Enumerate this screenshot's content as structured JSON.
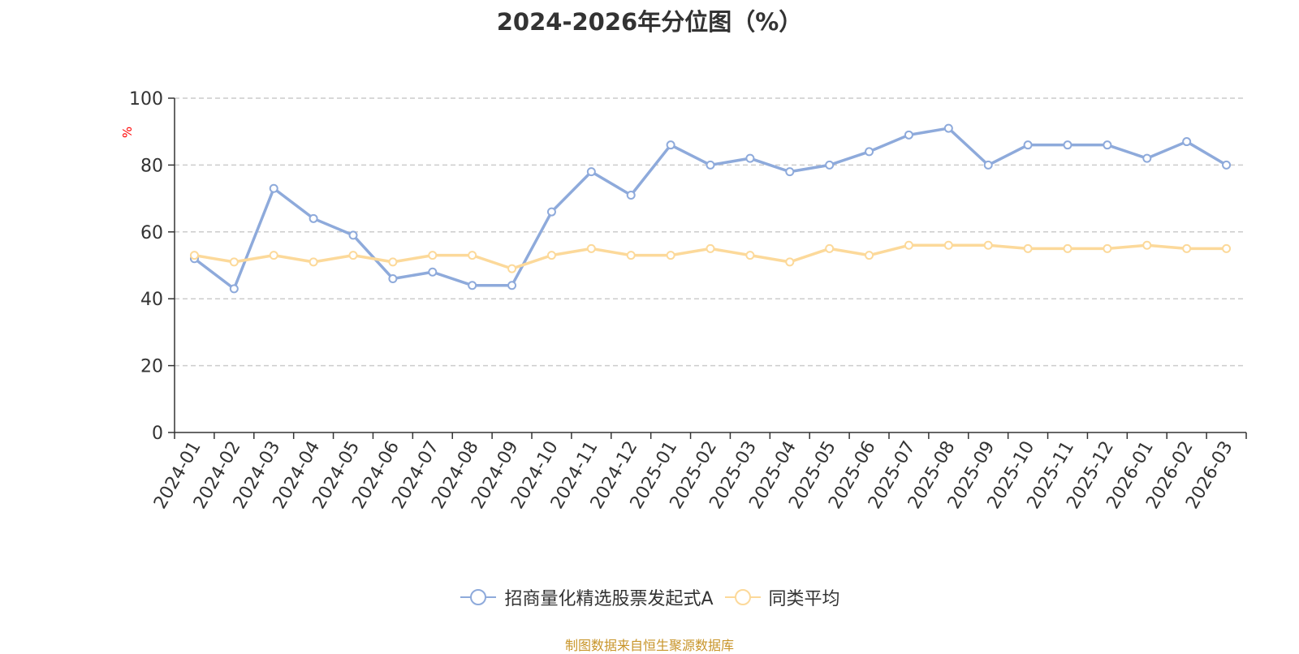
{
  "chart_data": {
    "type": "line",
    "title": "2024-2026年分位图（%）",
    "ylabel": "%",
    "ylim": [
      0,
      100
    ],
    "yticks": [
      0,
      20,
      40,
      60,
      80,
      100
    ],
    "grid": true,
    "legend_position": "bottom",
    "x": [
      "2024-01",
      "2024-02",
      "2024-03",
      "2024-04",
      "2024-05",
      "2024-06",
      "2024-07",
      "2024-08",
      "2024-09",
      "2024-10",
      "2024-11",
      "2024-12",
      "2025-01",
      "2025-02",
      "2025-03",
      "2025-04",
      "2025-05",
      "2025-06",
      "2025-07",
      "2025-08",
      "2025-09",
      "2025-10",
      "2025-11",
      "2025-12",
      "2026-01",
      "2026-02",
      "2026-03"
    ],
    "series": [
      {
        "name": "招商量化精选股票发起式A",
        "color": "#8eaadb",
        "values": [
          52,
          43,
          73,
          64,
          59,
          46,
          48,
          44,
          44,
          66,
          78,
          71,
          86,
          80,
          82,
          78,
          80,
          84,
          89,
          91,
          80,
          86,
          86,
          86,
          82,
          87,
          80
        ]
      },
      {
        "name": "同类平均",
        "color": "#fcd99a",
        "values": [
          53,
          51,
          53,
          51,
          53,
          51,
          53,
          53,
          49,
          53,
          55,
          53,
          53,
          55,
          53,
          51,
          55,
          53,
          56,
          56,
          56,
          55,
          55,
          55,
          56,
          55,
          55
        ]
      }
    ]
  },
  "source_text": "制图数据来自恒生聚源数据库"
}
